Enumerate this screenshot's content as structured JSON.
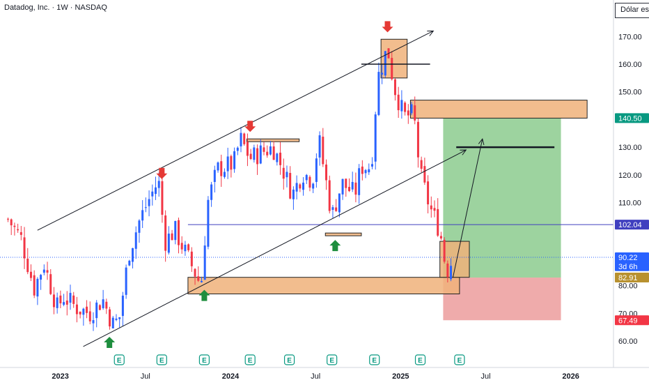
{
  "header": {
    "title": "Datadog, Inc. · 1W · NASDAQ",
    "currency_button": "Dólar es"
  },
  "colors": {
    "up": "#2962ff",
    "down": "#f23645",
    "zone": "#f0b27a",
    "zone_stroke": "#222222",
    "target_zone": "#4caf50",
    "stop_zone": "#e57373",
    "price_line": "#3f3fbf",
    "arrow_down": "#e53935",
    "arrow_up": "#1e8e3e"
  },
  "chart_data": {
    "type": "candlestick",
    "title": "Datadog, Inc. · 1W · NASDAQ",
    "xlabel": "",
    "ylabel": "",
    "ylim": [
      53,
      178
    ],
    "y_ticks": [
      60,
      70,
      80,
      90,
      100,
      110,
      120,
      130,
      140,
      150,
      160,
      170
    ],
    "y_tick_labels": [
      "60.00",
      "70.00",
      "80.00",
      "",
      "",
      "110.00",
      "120.00",
      "130.00",
      "",
      "150.00",
      "160.00",
      "170.00"
    ],
    "x_ticks": [
      {
        "label": "2023",
        "date": "2023-01-02"
      },
      {
        "label": "Jul",
        "date": "2023-07-03"
      },
      {
        "label": "2024",
        "date": "2024-01-01"
      },
      {
        "label": "Jul",
        "date": "2024-07-01"
      },
      {
        "label": "2025",
        "date": "2024-12-30"
      },
      {
        "label": "Jul",
        "date": "2025-06-30"
      },
      {
        "label": "2026",
        "date": "2025-12-29"
      }
    ],
    "price_labels": [
      {
        "text": "140.50",
        "value": 140.5,
        "style": "green"
      },
      {
        "text": "102.04",
        "value": 102.04,
        "style": "navy"
      },
      {
        "text": "90.22",
        "value": 90.22,
        "style": "blue"
      },
      {
        "text": "3d 6h",
        "value": 87,
        "style": "blue"
      },
      {
        "text": "82.91",
        "value": 82.91,
        "style": "gold"
      },
      {
        "text": "67.49",
        "value": 67.49,
        "style": "red"
      }
    ],
    "horizontal_line": {
      "value": 102.04,
      "from": "2023-10-02"
    },
    "last_price_line": 90.22,
    "keyframes": [
      [
        "2022-09-12",
        104
      ],
      [
        "2022-10-10",
        97
      ],
      [
        "2022-11-07",
        79
      ],
      [
        "2022-11-28",
        88
      ],
      [
        "2022-12-26",
        72
      ],
      [
        "2023-01-09",
        76
      ],
      [
        "2023-02-06",
        72
      ],
      [
        "2023-03-06",
        70
      ],
      [
        "2023-04-03",
        75
      ],
      [
        "2023-04-24",
        66
      ],
      [
        "2023-05-08",
        68
      ],
      [
        "2023-05-29",
        92
      ],
      [
        "2023-06-19",
        103
      ],
      [
        "2023-07-10",
        111
      ],
      [
        "2023-07-31",
        118
      ],
      [
        "2023-08-14",
        96
      ],
      [
        "2023-09-04",
        100
      ],
      [
        "2023-10-02",
        90
      ],
      [
        "2023-10-30",
        80
      ],
      [
        "2023-11-13",
        110
      ],
      [
        "2023-12-04",
        122
      ],
      [
        "2024-01-08",
        124
      ],
      [
        "2024-01-22",
        133
      ],
      [
        "2024-02-12",
        126
      ],
      [
        "2024-03-04",
        128
      ],
      [
        "2024-04-01",
        130
      ],
      [
        "2024-04-22",
        122
      ],
      [
        "2024-05-13",
        113
      ],
      [
        "2024-06-03",
        121
      ],
      [
        "2024-06-24",
        118
      ],
      [
        "2024-07-08",
        133
      ],
      [
        "2024-08-05",
        105
      ],
      [
        "2024-08-26",
        117
      ],
      [
        "2024-09-23",
        113
      ],
      [
        "2024-10-07",
        123
      ],
      [
        "2024-10-28",
        123
      ],
      [
        "2024-11-11",
        155
      ],
      [
        "2024-12-02",
        166
      ],
      [
        "2024-12-16",
        152
      ],
      [
        "2025-01-06",
        141
      ],
      [
        "2025-01-27",
        142
      ],
      [
        "2025-02-10",
        120
      ],
      [
        "2025-03-03",
        108
      ],
      [
        "2025-03-24",
        100
      ],
      [
        "2025-04-07",
        85
      ],
      [
        "2025-04-21",
        90
      ]
    ],
    "zones": [
      {
        "name": "support-zone",
        "from": "2023-10-02",
        "to": "2025-05-05",
        "low": 77,
        "high": 83
      },
      {
        "name": "resistance-zone",
        "from": "2025-01-20",
        "to": "2026-02-02",
        "low": 140.5,
        "high": 147
      },
      {
        "name": "top-box",
        "from": "2024-11-18",
        "to": "2025-01-13",
        "low": 155,
        "high": 169
      },
      {
        "name": "current-box",
        "from": "2025-03-24",
        "to": "2025-05-26",
        "low": 83,
        "high": 96
      },
      {
        "name": "small-resistance",
        "from": "2024-02-05",
        "to": "2024-05-27",
        "low": 132,
        "high": 133
      },
      {
        "name": "small-support",
        "from": "2024-07-22",
        "to": "2024-10-07",
        "low": 98,
        "high": 99
      }
    ],
    "target_zone": {
      "from": "2025-03-31",
      "to": "2025-12-08",
      "low": 82.91,
      "high": 140.5
    },
    "stop_zone": {
      "from": "2025-03-31",
      "to": "2025-12-08",
      "low": 67.49,
      "high": 82.91
    },
    "target_line": {
      "from": "2025-04-28",
      "to": "2025-11-24",
      "value": 130
    },
    "top_line": {
      "from": "2024-10-07",
      "to": "2025-03-03",
      "value": 160
    },
    "trend_lines": [
      {
        "name": "upper-channel",
        "from": [
          "2022-11-14",
          100
        ],
        "to": [
          "2025-03-10",
          172
        ]
      },
      {
        "name": "lower-channel",
        "from": [
          "2023-02-20",
          58
        ],
        "to": [
          "2025-05-19",
          129
        ]
      },
      {
        "name": "projection",
        "from": [
          "2025-04-21",
          83
        ],
        "to": [
          "2025-06-23",
          133
        ]
      }
    ],
    "down_arrows": [
      {
        "date": "2023-08-07",
        "value": 118
      },
      {
        "date": "2024-02-12",
        "value": 135
      },
      {
        "date": "2024-12-02",
        "value": 171
      }
    ],
    "up_arrows": [
      {
        "date": "2023-04-17",
        "value": 62
      },
      {
        "date": "2023-11-06",
        "value": 79
      },
      {
        "date": "2024-08-12",
        "value": 97
      }
    ],
    "earnings": [
      {
        "date": "2023-05-08",
        "label": "E"
      },
      {
        "date": "2023-08-07",
        "label": "E"
      },
      {
        "date": "2023-11-06",
        "label": "E"
      },
      {
        "date": "2024-02-12",
        "label": "E"
      },
      {
        "date": "2024-05-06",
        "label": "E"
      },
      {
        "date": "2024-08-05",
        "label": "E"
      },
      {
        "date": "2024-11-04",
        "label": "E"
      },
      {
        "date": "2025-02-10",
        "label": "E"
      },
      {
        "date": "2025-05-05",
        "label": "E"
      }
    ]
  }
}
